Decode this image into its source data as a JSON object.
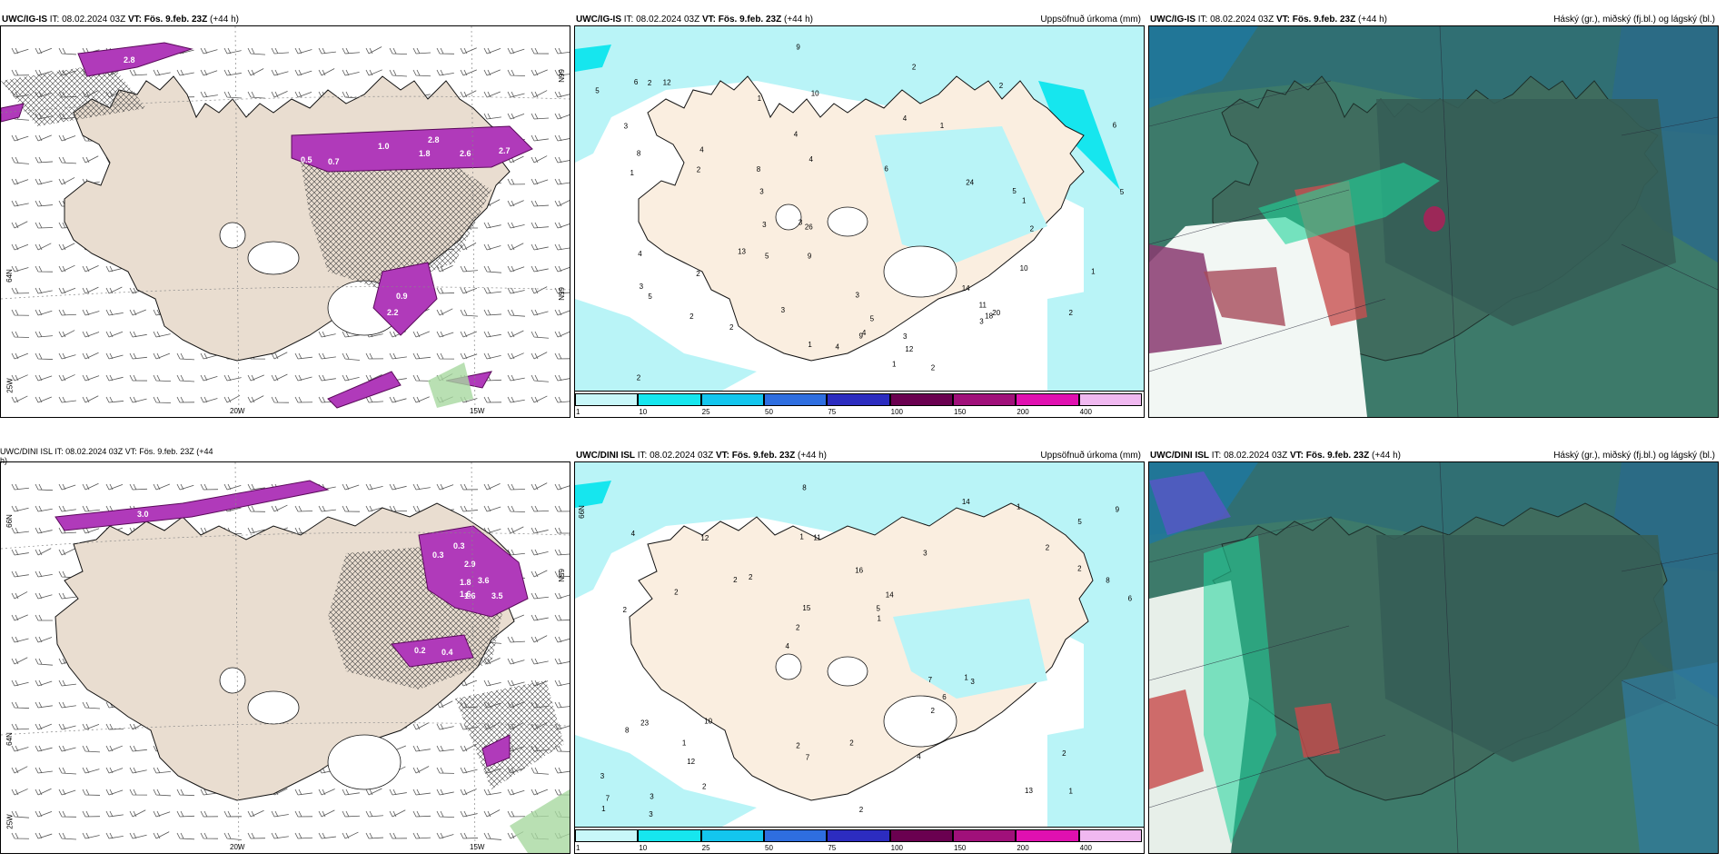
{
  "panels": [
    {
      "id": "p1",
      "model": "UWC/IG-IS",
      "it_label": "IT:",
      "it": "08.02.2024 03Z",
      "vt_label": "VT:",
      "vt": "Fös. 9.feb. 23Z",
      "lead": "(+44 h)",
      "right": "",
      "kind": "precip-type"
    },
    {
      "id": "p2",
      "model": "UWC/IG-IS",
      "it_label": "IT:",
      "it": "08.02.2024 03Z",
      "vt_label": "VT:",
      "vt": "Fös. 9.feb. 23Z",
      "lead": "(+44 h)",
      "right": "Uppsöfnuð úrkoma (mm)",
      "kind": "accum"
    },
    {
      "id": "p3",
      "model": "UWC/IG-IS",
      "it_label": "IT:",
      "it": "08.02.2024 03Z",
      "vt_label": "VT:",
      "vt": "Fös. 9.feb. 23Z",
      "lead": "(+44 h)",
      "right": "Háský (gr.), miðský (fj.bl.) og lágský (bl.)",
      "kind": "cloud"
    },
    {
      "id": "p4",
      "model": "UWC/DINI ISL",
      "it_label": "IT:",
      "it": "08.02.2024 03Z",
      "vt_label": "VT:",
      "vt": "Fös. 9.feb. 23Z",
      "lead": "(+44 h)",
      "right": "",
      "kind": "precip-type",
      "cut": true,
      "cut_title": "UWC/DINI ISL  IT: 08.02.2024 03Z  VT: Fös. 9.feb. 23Z  (+44",
      "cut_tail": "h)"
    },
    {
      "id": "p5",
      "model": "UWC/DINI ISL",
      "it_label": "IT:",
      "it": "08.02.2024 03Z",
      "vt_label": "VT:",
      "vt": "Fös. 9.feb. 23Z",
      "lead": "(+44 h)",
      "right": "Uppsöfnuð úrkoma (mm)",
      "kind": "accum"
    },
    {
      "id": "p6",
      "model": "UWC/DINI ISL",
      "it_label": "IT:",
      "it": "08.02.2024 03Z",
      "vt_label": "VT:",
      "vt": "Fös. 9.feb. 23Z",
      "lead": "(+44 h)",
      "right": "Háský (gr.), miðský (fj.bl.) og lágský (bl.)",
      "kind": "cloud"
    }
  ],
  "axis_ticks": {
    "lon": [
      "20W",
      "15W"
    ],
    "lat": [
      "66N",
      "65N",
      "64N"
    ],
    "lon_left": "25W"
  },
  "colorbar": {
    "labels": [
      "1",
      "10",
      "25",
      "50",
      "75",
      "100",
      "150",
      "200",
      "400"
    ],
    "colors": [
      "#c8f7f9",
      "#16e6ee",
      "#13c6ee",
      "#2e6ee0",
      "#2c2cc0",
      "#6a0050",
      "#a0107a",
      "#e010b0",
      "#f0b8f0"
    ]
  },
  "precip_labels_top": [
    "2.8",
    "1.0",
    "1.8",
    "2.6",
    "2.8",
    "2.7",
    "0.5",
    "0.7",
    "0.9",
    "2.2"
  ],
  "precip_labels_bottom": [
    "0.3",
    "1.6",
    "2.9",
    "1.8",
    "3.6",
    "1.6",
    "3.5",
    "0.2",
    "0.4",
    "3.0",
    "0.3"
  ],
  "accum_numbers_top": [
    "1",
    "5",
    "6",
    "5",
    "5",
    "5",
    "4",
    "4",
    "5",
    "4",
    "2",
    "2",
    "4",
    "2",
    "2",
    "12",
    "11",
    "18",
    "1",
    "1",
    "12",
    "2",
    "2",
    "3",
    "3",
    "2",
    "2",
    "1",
    "1",
    "8",
    "6",
    "14",
    "10",
    "3",
    "3",
    "4",
    "2",
    "20",
    "26",
    "13",
    "2",
    "2",
    "3",
    "3",
    "1",
    "4",
    "8",
    "9",
    "9",
    "10",
    "9",
    "3",
    "3",
    "24",
    "6",
    "3",
    "5",
    "4",
    "1"
  ],
  "accum_numbers_bottom": [
    "1",
    "2",
    "5",
    "4",
    "3",
    "3",
    "1",
    "16",
    "23",
    "2",
    "3",
    "12",
    "11",
    "14",
    "3",
    "4",
    "8",
    "6",
    "7",
    "2",
    "2",
    "2",
    "15",
    "12",
    "14",
    "10",
    "13",
    "2",
    "1",
    "2",
    "2",
    "2",
    "2",
    "2",
    "8",
    "5",
    "7",
    "7",
    "1",
    "8",
    "2",
    "9",
    "6",
    "4",
    "1",
    "3",
    "1",
    "2",
    "1"
  ]
}
